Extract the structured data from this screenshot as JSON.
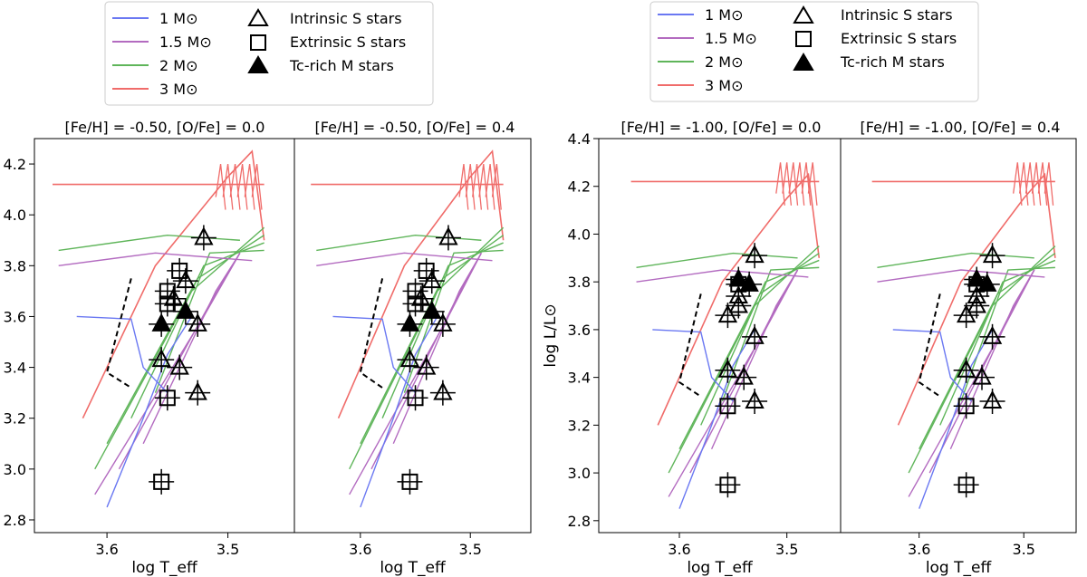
{
  "legend": {
    "tracks": [
      {
        "label": "1 M⊙",
        "color": "#6a78f2"
      },
      {
        "label": "1.5 M⊙",
        "color": "#b36bc0"
      },
      {
        "label": "2 M⊙",
        "color": "#5fb55a"
      },
      {
        "label": "3 M⊙",
        "color": "#f06c6a"
      }
    ],
    "markers": [
      {
        "label": "Intrinsic S stars",
        "shape": "triangle-open"
      },
      {
        "label": "Extrinsic S stars",
        "shape": "square-open"
      },
      {
        "label": "Tc-rich M stars",
        "shape": "triangle-filled"
      }
    ]
  },
  "chart_data": [
    {
      "type": "scatter",
      "title": "[Fe/H] = -0.50, [O/Fe] = 0.0",
      "xlabel": "log T_eff",
      "ylabel": "log L/L⊙",
      "xlim": [
        3.66,
        3.445
      ],
      "ylim": [
        2.75,
        4.3
      ],
      "xticks": [
        "3.6",
        "3.5"
      ],
      "yticks": [
        "2.8",
        "3.0",
        "3.2",
        "3.4",
        "3.6",
        "3.8",
        "4.0",
        "4.2"
      ],
      "series": [
        {
          "name": "Intrinsic S stars",
          "points": [
            [
              3.52,
              3.91
            ],
            [
              3.535,
              3.74
            ],
            [
              3.545,
              3.67
            ],
            [
              3.525,
              3.57
            ],
            [
              3.555,
              3.43
            ],
            [
              3.54,
              3.4
            ],
            [
              3.525,
              3.3
            ]
          ]
        },
        {
          "name": "Extrinsic S stars",
          "points": [
            [
              3.54,
              3.78
            ],
            [
              3.55,
              3.7
            ],
            [
              3.55,
              3.65
            ],
            [
              3.55,
              3.28
            ],
            [
              3.555,
              2.95
            ]
          ]
        },
        {
          "name": "Tc-rich M stars",
          "points": [
            [
              3.535,
              3.62
            ],
            [
              3.555,
              3.57
            ]
          ]
        }
      ]
    },
    {
      "type": "scatter",
      "title": "[Fe/H] = -0.50, [O/Fe] = 0.4",
      "xlabel": "log T_eff",
      "ylabel": "",
      "xlim": [
        3.66,
        3.445
      ],
      "ylim": [
        2.75,
        4.3
      ],
      "xticks": [
        "3.6",
        "3.5"
      ],
      "yticks": [],
      "series": [
        {
          "name": "Intrinsic S stars",
          "points": [
            [
              3.52,
              3.91
            ],
            [
              3.535,
              3.74
            ],
            [
              3.545,
              3.67
            ],
            [
              3.525,
              3.57
            ],
            [
              3.555,
              3.43
            ],
            [
              3.54,
              3.4
            ],
            [
              3.525,
              3.3
            ]
          ]
        },
        {
          "name": "Extrinsic S stars",
          "points": [
            [
              3.54,
              3.78
            ],
            [
              3.55,
              3.7
            ],
            [
              3.55,
              3.65
            ],
            [
              3.55,
              3.28
            ],
            [
              3.555,
              2.95
            ]
          ]
        },
        {
          "name": "Tc-rich M stars",
          "points": [
            [
              3.535,
              3.62
            ],
            [
              3.555,
              3.57
            ]
          ]
        }
      ]
    },
    {
      "type": "scatter",
      "title": "[Fe/H] = -1.00, [O/Fe] = 0.0",
      "xlabel": "log T_eff",
      "ylabel": "log L/L⊙",
      "xlim": [
        3.675,
        3.45
      ],
      "ylim": [
        2.75,
        4.4
      ],
      "xticks": [
        "3.6",
        "3.5"
      ],
      "yticks": [
        "2.8",
        "3.0",
        "3.2",
        "3.4",
        "3.6",
        "3.8",
        "4.0",
        "4.2",
        "4.4"
      ],
      "series": [
        {
          "name": "Intrinsic S stars",
          "points": [
            [
              3.53,
              3.91
            ],
            [
              3.545,
              3.74
            ],
            [
              3.545,
              3.7
            ],
            [
              3.555,
              3.66
            ],
            [
              3.53,
              3.57
            ],
            [
              3.555,
              3.43
            ],
            [
              3.54,
              3.4
            ],
            [
              3.53,
              3.3
            ]
          ]
        },
        {
          "name": "Extrinsic S stars",
          "points": [
            [
              3.545,
              3.79
            ],
            [
              3.555,
              3.28
            ],
            [
              3.555,
              2.95
            ]
          ]
        },
        {
          "name": "Tc-rich M stars",
          "points": [
            [
              3.545,
              3.81
            ],
            [
              3.535,
              3.79
            ]
          ]
        }
      ]
    },
    {
      "type": "scatter",
      "title": "[Fe/H] = -1.00, [O/Fe] = 0.4",
      "xlabel": "log T_eff",
      "ylabel": "",
      "xlim": [
        3.675,
        3.45
      ],
      "ylim": [
        2.75,
        4.4
      ],
      "xticks": [
        "3.6",
        "3.5"
      ],
      "yticks": [],
      "series": [
        {
          "name": "Intrinsic S stars",
          "points": [
            [
              3.53,
              3.91
            ],
            [
              3.545,
              3.74
            ],
            [
              3.545,
              3.7
            ],
            [
              3.555,
              3.66
            ],
            [
              3.53,
              3.57
            ],
            [
              3.555,
              3.43
            ],
            [
              3.54,
              3.4
            ],
            [
              3.53,
              3.3
            ]
          ]
        },
        {
          "name": "Extrinsic S stars",
          "points": [
            [
              3.545,
              3.79
            ],
            [
              3.555,
              3.28
            ],
            [
              3.555,
              2.95
            ]
          ]
        },
        {
          "name": "Tc-rich M stars",
          "points": [
            [
              3.545,
              3.81
            ],
            [
              3.535,
              3.79
            ]
          ]
        }
      ]
    }
  ]
}
